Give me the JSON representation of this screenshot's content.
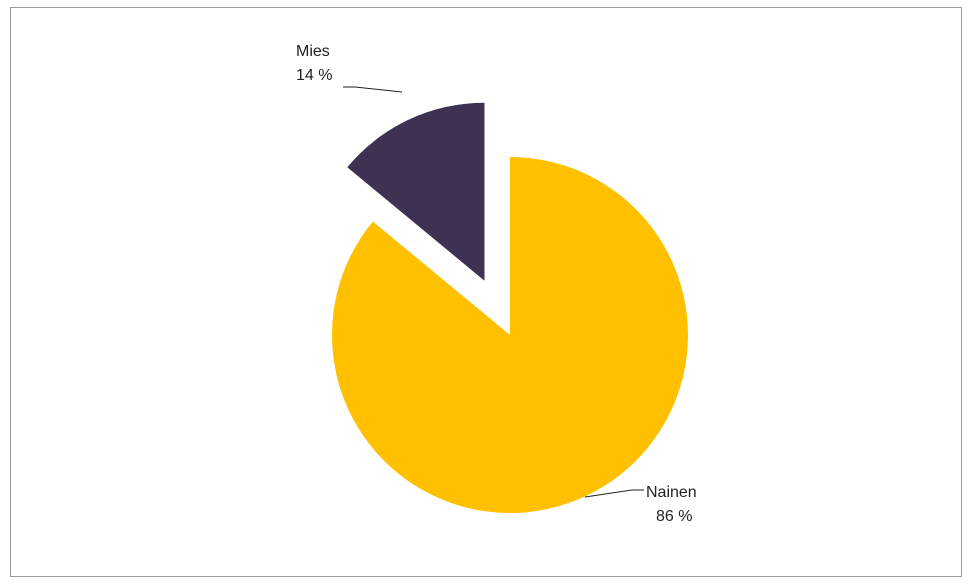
{
  "chart_data": {
    "type": "pie",
    "slices": [
      {
        "name": "Nainen",
        "value": 86,
        "value_label": "86 %",
        "color": "#FFC000"
      },
      {
        "name": "Mies",
        "value": 14,
        "value_label": "14 %",
        "color": "#3F3151"
      }
    ],
    "exploded_slice": "Mies",
    "legend": "none"
  }
}
